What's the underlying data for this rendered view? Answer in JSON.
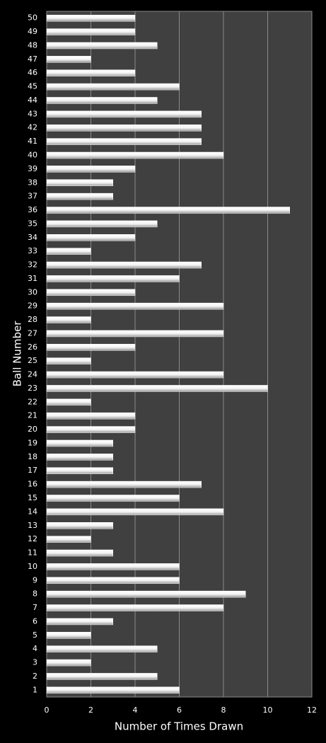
{
  "chart_data": {
    "type": "barh",
    "x_label": "Number of Times Drawn",
    "y_label": "Ball Number",
    "categories": [
      "1",
      "2",
      "3",
      "4",
      "5",
      "6",
      "7",
      "8",
      "9",
      "10",
      "11",
      "12",
      "13",
      "14",
      "15",
      "16",
      "17",
      "18",
      "19",
      "20",
      "21",
      "22",
      "23",
      "24",
      "25",
      "26",
      "27",
      "28",
      "29",
      "30",
      "31",
      "32",
      "33",
      "34",
      "35",
      "36",
      "37",
      "38",
      "39",
      "40",
      "41",
      "42",
      "43",
      "44",
      "45",
      "46",
      "47",
      "48",
      "49",
      "50"
    ],
    "values": [
      6,
      5,
      2,
      5,
      2,
      3,
      8,
      9,
      6,
      6,
      3,
      2,
      3,
      8,
      6,
      7,
      3,
      3,
      3,
      4,
      4,
      2,
      10,
      8,
      2,
      4,
      8,
      2,
      8,
      4,
      6,
      7,
      2,
      4,
      5,
      11,
      3,
      3,
      4,
      8,
      7,
      7,
      7,
      5,
      6,
      4,
      2,
      5,
      4,
      4
    ],
    "color": "#ffffff",
    "xlim": [
      0,
      12
    ],
    "xticks": [
      0,
      2,
      4,
      6,
      8,
      10,
      12
    ],
    "grid": true
  }
}
